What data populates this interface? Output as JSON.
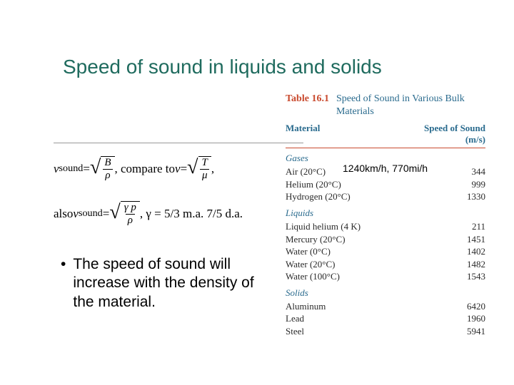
{
  "title": "Speed of sound in liquids and solids",
  "formula1": {
    "lhs": "v",
    "lhs_sub": "sound",
    "eq": " = ",
    "frac_top1": "B",
    "frac_bot1": "ρ",
    "mid": ", compare to ",
    "rhs_lhs": "v",
    "eq2": " = ",
    "frac_top2": "T",
    "frac_bot2": "μ",
    "tail": ","
  },
  "formula2": {
    "pre": "also ",
    "lhs": "v",
    "lhs_sub": "sound",
    "eq": " = ",
    "frac_top": "γ p",
    "frac_bot": "ρ",
    "post": ", γ = 5/3 m.a. 7/5 d.a."
  },
  "bullet": {
    "dot": "•",
    "text": "The speed of sound will increase with the density of the material."
  },
  "annotation": "1240km/h, 770mi/h",
  "table": {
    "number": "Table 16.1",
    "title": "Speed of Sound in Various Bulk Materials",
    "col1": "Material",
    "col2_a": "Speed of Sound",
    "col2_b": "(m/s)",
    "sections": [
      {
        "label": "Gases",
        "rows": [
          {
            "mat": "Air (20°C)",
            "val": "344"
          },
          {
            "mat": "Helium (20°C)",
            "val": "999"
          },
          {
            "mat": "Hydrogen (20°C)",
            "val": "1330"
          }
        ]
      },
      {
        "label": "Liquids",
        "rows": [
          {
            "mat": "Liquid helium (4 K)",
            "val": "211"
          },
          {
            "mat": "Mercury (20°C)",
            "val": "1451"
          },
          {
            "mat": "Water (0°C)",
            "val": "1402"
          },
          {
            "mat": "Water (20°C)",
            "val": "1482"
          },
          {
            "mat": "Water (100°C)",
            "val": "1543"
          }
        ]
      },
      {
        "label": "Solids",
        "rows": [
          {
            "mat": "Aluminum",
            "val": "6420"
          },
          {
            "mat": "Lead",
            "val": "1960"
          },
          {
            "mat": "Steel",
            "val": "5941"
          }
        ]
      }
    ]
  },
  "colors": {
    "title": "#1f6b5e",
    "table_accent": "#c94a2e",
    "table_header": "#2a6b8e",
    "text": "#000000",
    "background": "#ffffff"
  }
}
